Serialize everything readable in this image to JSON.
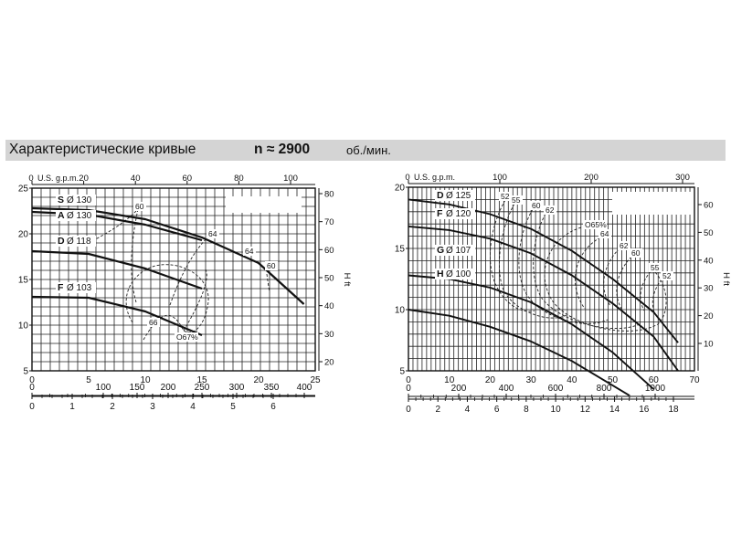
{
  "header": {
    "title": "Характеристические кривые",
    "speed": "n ≈ 2900",
    "speed_unit": "об./мин."
  },
  "chart_data": [
    {
      "type": "line",
      "y_axis": {
        "min": 5,
        "max": 25,
        "ticks": [
          5,
          10,
          15,
          20,
          25
        ]
      },
      "x_axis_primary": {
        "min": 0,
        "max": 25,
        "ticks": [
          0,
          5,
          10,
          15,
          20,
          25
        ]
      },
      "top_axis": {
        "label": "U.S. g.p.m.",
        "ticks": [
          0,
          20,
          40,
          60,
          80,
          100
        ]
      },
      "right_axis": {
        "label": "H ft",
        "ticks": [
          20,
          30,
          40,
          50,
          60,
          70,
          80
        ]
      },
      "bottom_axis_2": {
        "ticks": [
          0,
          100,
          150,
          200,
          250,
          300,
          350,
          400
        ]
      },
      "bottom_axis_3": {
        "ticks": [
          0,
          1,
          2,
          3,
          4,
          5,
          6
        ]
      },
      "series": [
        {
          "letter": "S",
          "diameter": "Ø 130",
          "x": [
            0,
            5,
            10,
            15,
            20,
            24
          ],
          "y": [
            22.8,
            22.6,
            21.6,
            19.6,
            16.8,
            12.3
          ]
        },
        {
          "letter": "A",
          "diameter": "Ø 130",
          "x": [
            0,
            5,
            10,
            15
          ],
          "y": [
            22.4,
            22.1,
            21,
            19.3
          ]
        },
        {
          "letter": "D",
          "diameter": "Ø 118",
          "x": [
            0,
            5,
            10,
            15
          ],
          "y": [
            18.1,
            17.8,
            16.2,
            14
          ]
        },
        {
          "letter": "F",
          "diameter": "Ø 103",
          "x": [
            0,
            5,
            10,
            15
          ],
          "y": [
            13.1,
            13,
            11.5,
            8.9
          ]
        }
      ],
      "efficiency_labels": [
        "60",
        "64",
        "64",
        "60",
        "66",
        "O67%"
      ]
    },
    {
      "type": "line",
      "y_axis": {
        "min": 5,
        "max": 20,
        "ticks": [
          5,
          10,
          15,
          20
        ]
      },
      "x_axis_primary": {
        "min": 0,
        "max": 70,
        "ticks": [
          0,
          10,
          20,
          30,
          40,
          50,
          60,
          70
        ]
      },
      "top_axis": {
        "label": "U.S. g.p.m.",
        "ticks": [
          0,
          100,
          200,
          300
        ]
      },
      "right_axis": {
        "label": "H ft",
        "ticks": [
          10,
          20,
          30,
          40,
          50,
          60
        ]
      },
      "bottom_axis_2": {
        "ticks": [
          0,
          200,
          400,
          600,
          800,
          1000
        ]
      },
      "bottom_axis_3": {
        "ticks": [
          0,
          2,
          4,
          6,
          8,
          10,
          12,
          14,
          16,
          18
        ]
      },
      "series": [
        {
          "letter": "D",
          "diameter": "Ø 125",
          "x": [
            0,
            10,
            20,
            30,
            40,
            50,
            60,
            66
          ],
          "y": [
            19,
            18.6,
            17.8,
            16.6,
            14.8,
            12.5,
            9.8,
            7.3
          ]
        },
        {
          "letter": "F",
          "diameter": "Ø 120",
          "x": [
            0,
            10,
            20,
            30,
            40,
            50,
            60,
            66
          ],
          "y": [
            16.8,
            16.5,
            15.8,
            14.6,
            12.8,
            10.5,
            7.8,
            5
          ]
        },
        {
          "letter": "G",
          "diameter": "Ø 107",
          "x": [
            0,
            10,
            20,
            30,
            40,
            50,
            60
          ],
          "y": [
            12.8,
            12.5,
            11.8,
            10.6,
            8.8,
            6.5,
            3.5
          ]
        },
        {
          "letter": "H",
          "diameter": "Ø 100",
          "x": [
            0,
            10,
            20,
            30,
            40,
            50,
            54
          ],
          "y": [
            10,
            9.5,
            8.6,
            7.4,
            5.8,
            3.8,
            3
          ]
        }
      ],
      "efficiency_labels": [
        "52",
        "55",
        "60",
        "62",
        "O65%",
        "64",
        "62",
        "60",
        "55",
        "52"
      ]
    }
  ]
}
